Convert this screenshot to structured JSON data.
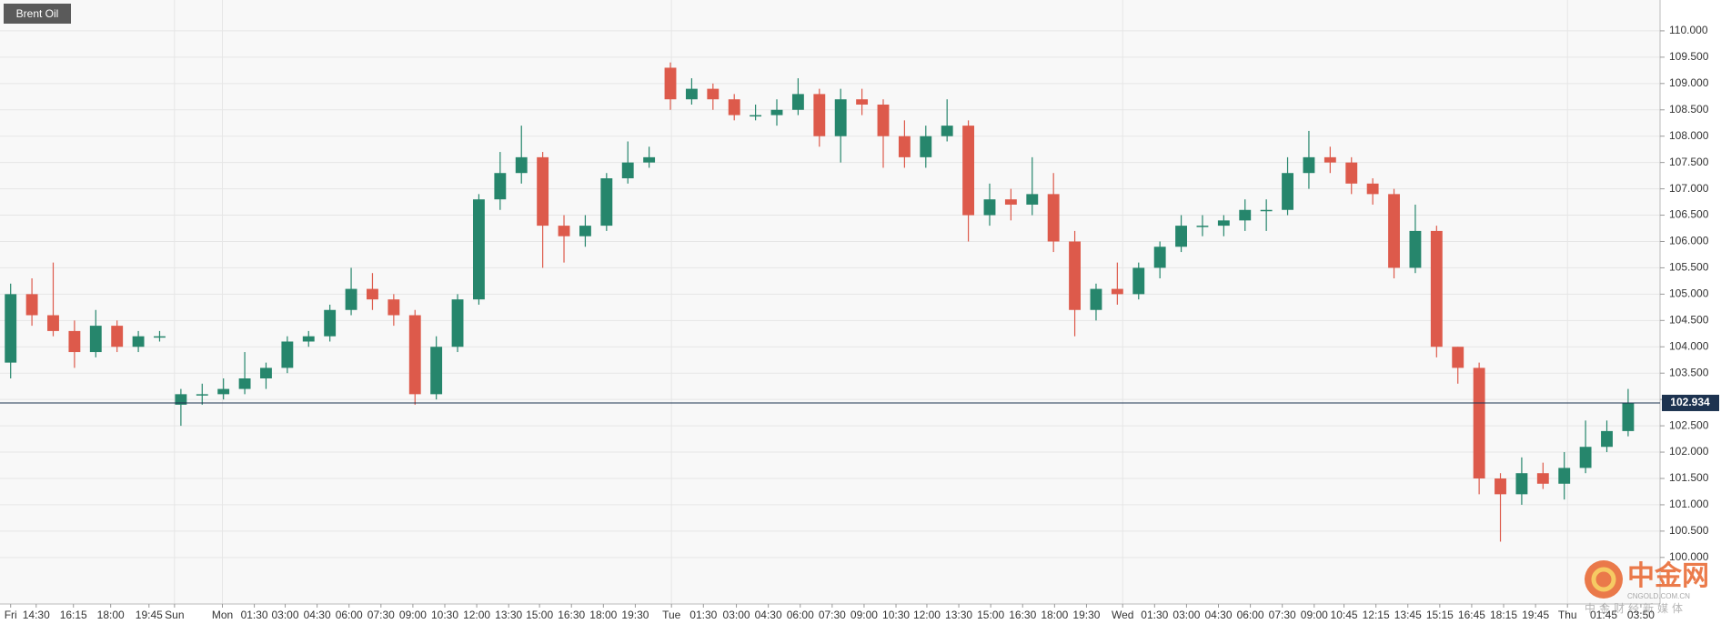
{
  "chart_data": {
    "type": "candlestick",
    "title": "Brent Oil",
    "colors": {
      "up": "#26866c",
      "down": "#dd5a4b",
      "last": "#1d3350"
    },
    "grid": true,
    "xlim": [
      0,
      78
    ],
    "ylim": [
      99.116,
      110.586
    ],
    "yticks": [
      {
        "value": 100,
        "label": "100.000"
      },
      {
        "value": 100.5,
        "label": "100.500"
      },
      {
        "value": 101,
        "label": "101.000"
      },
      {
        "value": 101.5,
        "label": "101.500"
      },
      {
        "value": 102,
        "label": "102.000"
      },
      {
        "value": 102.5,
        "label": "102.500"
      },
      {
        "value": 103,
        "label": "103.000"
      },
      {
        "value": 103.5,
        "label": "103.500"
      },
      {
        "value": 104,
        "label": "104.000"
      },
      {
        "value": 104.5,
        "label": "104.500"
      },
      {
        "value": 105,
        "label": "105.000"
      },
      {
        "value": 105.5,
        "label": "105.500"
      },
      {
        "value": 106,
        "label": "106.000"
      },
      {
        "value": 106.5,
        "label": "106.500"
      },
      {
        "value": 107,
        "label": "107.000"
      },
      {
        "value": 107.5,
        "label": "107.500"
      },
      {
        "value": 108,
        "label": "108.000"
      },
      {
        "value": 108.5,
        "label": "108.500"
      },
      {
        "value": 109,
        "label": "109.000"
      },
      {
        "value": 109.5,
        "label": "109.500"
      },
      {
        "value": 110,
        "label": "110.000"
      }
    ],
    "xticks": [
      {
        "value": 0.5,
        "label": "Fri"
      },
      {
        "value": 1.7,
        "label": "14:30"
      },
      {
        "value": 3.45,
        "label": "16:15"
      },
      {
        "value": 5.2,
        "label": "18:00"
      },
      {
        "value": 7,
        "label": "19:45"
      },
      {
        "value": 8.2,
        "label": "Sun"
      },
      {
        "value": 10.45,
        "label": "Mon"
      },
      {
        "value": 11.95,
        "label": "01:30"
      },
      {
        "value": 13.4,
        "label": "03:00"
      },
      {
        "value": 14.9,
        "label": "04:30"
      },
      {
        "value": 16.4,
        "label": "06:00"
      },
      {
        "value": 17.9,
        "label": "07:30"
      },
      {
        "value": 19.4,
        "label": "09:00"
      },
      {
        "value": 20.9,
        "label": "10:30"
      },
      {
        "value": 22.4,
        "label": "12:00"
      },
      {
        "value": 23.9,
        "label": "13:30"
      },
      {
        "value": 25.35,
        "label": "15:00"
      },
      {
        "value": 26.85,
        "label": "16:30"
      },
      {
        "value": 28.35,
        "label": "18:00"
      },
      {
        "value": 29.85,
        "label": "19:30"
      },
      {
        "value": 31.55,
        "label": "Tue"
      },
      {
        "value": 33.05,
        "label": "01:30"
      },
      {
        "value": 34.6,
        "label": "03:00"
      },
      {
        "value": 36.1,
        "label": "04:30"
      },
      {
        "value": 37.6,
        "label": "06:00"
      },
      {
        "value": 39.1,
        "label": "07:30"
      },
      {
        "value": 40.6,
        "label": "09:00"
      },
      {
        "value": 42.1,
        "label": "10:30"
      },
      {
        "value": 43.55,
        "label": "12:00"
      },
      {
        "value": 45.05,
        "label": "13:30"
      },
      {
        "value": 46.55,
        "label": "15:00"
      },
      {
        "value": 48.05,
        "label": "16:30"
      },
      {
        "value": 49.55,
        "label": "18:00"
      },
      {
        "value": 51.05,
        "label": "19:30"
      },
      {
        "value": 52.75,
        "label": "Wed"
      },
      {
        "value": 54.25,
        "label": "01:30"
      },
      {
        "value": 55.75,
        "label": "03:00"
      },
      {
        "value": 57.25,
        "label": "04:30"
      },
      {
        "value": 58.75,
        "label": "06:00"
      },
      {
        "value": 60.25,
        "label": "07:30"
      },
      {
        "value": 61.75,
        "label": "09:00"
      },
      {
        "value": 63.15,
        "label": "10:45"
      },
      {
        "value": 64.65,
        "label": "12:15"
      },
      {
        "value": 66.15,
        "label": "13:45"
      },
      {
        "value": 67.65,
        "label": "15:15"
      },
      {
        "value": 69.15,
        "label": "16:45"
      },
      {
        "value": 70.65,
        "label": "18:15"
      },
      {
        "value": 72.15,
        "label": "19:45"
      },
      {
        "value": 73.65,
        "label": "Thu"
      },
      {
        "value": 75.35,
        "label": "01:45"
      },
      {
        "value": 77.1,
        "label": "03:50"
      }
    ],
    "day_ticks": [
      5,
      6,
      20,
      34,
      48
    ],
    "open": [
      103.7,
      105.0,
      104.6,
      104.3,
      103.9,
      104.4,
      104.0,
      104.2,
      102.9,
      103.1,
      103.1,
      103.2,
      103.4,
      103.6,
      104.1,
      104.2,
      104.7,
      105.1,
      104.9,
      104.6,
      103.1,
      104.0,
      104.9,
      106.8,
      107.3,
      107.6,
      106.3,
      106.1,
      106.3,
      107.2,
      107.5,
      109.3,
      108.7,
      108.9,
      108.7,
      108.4,
      108.4,
      108.5,
      108.8,
      108.0,
      108.7,
      108.6,
      108.0,
      107.6,
      108.0,
      108.2,
      106.5,
      106.8,
      106.7,
      106.9,
      106.0,
      104.7,
      105.1,
      105.0,
      105.5,
      105.9,
      106.3,
      106.3,
      106.4,
      106.6,
      106.6,
      107.3,
      107.6,
      107.5,
      107.1,
      106.9,
      105.5,
      106.2,
      104.0,
      103.6,
      101.5,
      101.2,
      101.6,
      101.4,
      101.7,
      102.1,
      102.4
    ],
    "high": [
      105.2,
      105.3,
      105.6,
      104.5,
      104.7,
      104.5,
      104.3,
      104.3,
      103.2,
      103.3,
      103.4,
      103.9,
      103.7,
      104.2,
      104.3,
      104.8,
      105.5,
      105.4,
      105.0,
      104.7,
      104.2,
      105.0,
      106.9,
      107.7,
      108.2,
      107.7,
      106.5,
      106.5,
      107.3,
      107.9,
      107.8,
      109.4,
      109.1,
      109.0,
      108.8,
      108.6,
      108.7,
      109.1,
      108.9,
      108.9,
      108.9,
      108.7,
      108.3,
      108.2,
      108.7,
      108.3,
      107.1,
      107.0,
      107.6,
      107.3,
      106.2,
      105.2,
      105.6,
      105.6,
      106.0,
      106.5,
      106.5,
      106.5,
      106.8,
      106.8,
      107.6,
      108.1,
      107.8,
      107.6,
      107.2,
      107.0,
      106.7,
      106.3,
      104.0,
      103.7,
      101.6,
      101.9,
      101.8,
      102.0,
      102.6,
      102.6,
      103.2
    ],
    "low": [
      103.4,
      104.4,
      104.2,
      103.6,
      103.8,
      103.9,
      103.9,
      104.1,
      102.5,
      102.9,
      103.0,
      103.1,
      103.2,
      103.5,
      104.0,
      104.1,
      104.6,
      104.7,
      104.4,
      102.9,
      103.0,
      103.9,
      104.8,
      106.6,
      107.1,
      105.5,
      105.6,
      105.9,
      106.2,
      107.1,
      107.4,
      108.5,
      108.6,
      108.5,
      108.3,
      108.3,
      108.2,
      108.4,
      107.8,
      107.5,
      108.4,
      107.4,
      107.4,
      107.4,
      107.9,
      106.0,
      106.3,
      106.4,
      106.5,
      105.8,
      104.2,
      104.5,
      104.8,
      104.9,
      105.3,
      105.8,
      106.1,
      106.1,
      106.2,
      106.2,
      106.5,
      107.0,
      107.3,
      106.9,
      106.7,
      105.3,
      105.4,
      103.8,
      103.3,
      101.2,
      100.3,
      101.0,
      101.3,
      101.1,
      101.6,
      102.0,
      102.3
    ],
    "close": [
      105.0,
      104.6,
      104.3,
      103.9,
      104.4,
      104.0,
      104.2,
      104.2,
      103.1,
      103.1,
      103.2,
      103.4,
      103.6,
      104.1,
      104.2,
      104.7,
      105.1,
      104.9,
      104.6,
      103.1,
      104.0,
      104.9,
      106.8,
      107.3,
      107.6,
      106.3,
      106.1,
      106.3,
      107.2,
      107.5,
      107.6,
      108.7,
      108.9,
      108.7,
      108.4,
      108.4,
      108.5,
      108.8,
      108.0,
      108.7,
      108.6,
      108.0,
      107.6,
      108.0,
      108.2,
      106.5,
      106.8,
      106.7,
      106.9,
      106.0,
      104.7,
      105.1,
      105.0,
      105.5,
      105.9,
      106.3,
      106.3,
      106.4,
      106.6,
      106.6,
      107.3,
      107.6,
      107.5,
      107.1,
      106.9,
      105.5,
      106.2,
      104.0,
      103.6,
      101.5,
      101.2,
      101.6,
      101.4,
      101.7,
      102.1,
      102.4,
      102.93
    ],
    "last_price": 102.934,
    "watermark": {
      "name": "中金网",
      "site": "CNGOLD.COM.CN",
      "slogan": "中金财经新媒体"
    }
  }
}
